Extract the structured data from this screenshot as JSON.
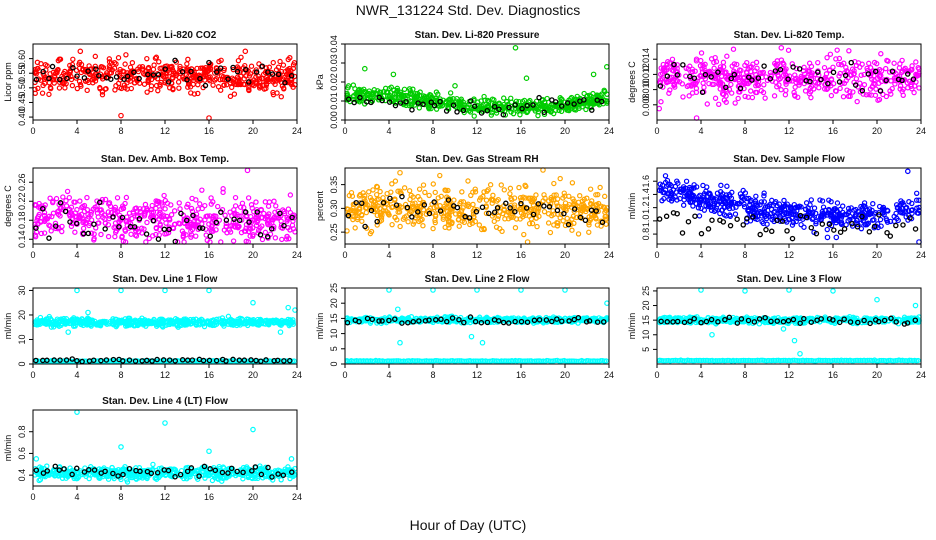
{
  "figure": {
    "title": "NWR_131224  Std. Dev. Diagnostics",
    "xlabel": "Hour of Day (UTC)"
  },
  "colors": {
    "red": "#ff0000",
    "green": "#00cc00",
    "magenta": "#ff00ff",
    "orange": "#ffa500",
    "blue": "#0000ff",
    "cyan": "#00ffff",
    "black": "#000000"
  },
  "chart_data": [
    {
      "type": "scatter",
      "title": "Stan. Dev. Li-820 CO2",
      "ylabel": "Licor ppm",
      "xlim": [
        0,
        24
      ],
      "ylim": [
        0.39,
        0.65
      ],
      "xticks": [
        0,
        4,
        8,
        12,
        16,
        20,
        24
      ],
      "yticks": [
        "0.40",
        "0.45",
        "0.50",
        "0.55",
        "0.60"
      ],
      "ytick_values": [
        0.4,
        0.45,
        0.5,
        0.55,
        0.6
      ],
      "color": "red",
      "center": [
        0.54,
        0.54,
        0.54,
        0.54,
        0.54,
        0.54,
        0.54
      ],
      "spread": 0.038,
      "outliers": [
        [
          4.3,
          0.625
        ],
        [
          8.0,
          0.405
        ],
        [
          16.0,
          0.39
        ],
        [
          19.3,
          0.625
        ]
      ],
      "black_center": 0.54,
      "black_spread": 0.03
    },
    {
      "type": "scatter",
      "title": "Stan. Dev. Li-820 Pressure",
      "ylabel": "kPa",
      "xlim": [
        0,
        24
      ],
      "ylim": [
        0,
        0.04
      ],
      "xticks": [
        0,
        4,
        8,
        12,
        16,
        20,
        24
      ],
      "yticks": [
        "0.00",
        "0.01",
        "0.02",
        "0.03",
        "0.04"
      ],
      "ytick_values": [
        0,
        0.01,
        0.02,
        0.03,
        0.04
      ],
      "color": "green",
      "center": [
        0.013,
        0.013,
        0.01,
        0.007,
        0.007,
        0.008,
        0.012
      ],
      "spread": 0.003,
      "outliers": [
        [
          15.5,
          0.038
        ],
        [
          16.5,
          0.022
        ],
        [
          4.4,
          0.024
        ],
        [
          23.8,
          0.028
        ],
        [
          22.6,
          0.024
        ],
        [
          1.8,
          0.027
        ],
        [
          10.0,
          0.018
        ]
      ],
      "black_center": 0.01,
      "black_spread": 0.003
    },
    {
      "type": "scatter",
      "title": "Stan. Dev. Li-820 Temp.",
      "ylabel": "degrees C",
      "xlim": [
        0,
        24
      ],
      "ylim": [
        0.006,
        0.016
      ],
      "xticks": [
        0,
        4,
        8,
        12,
        16,
        20,
        24
      ],
      "yticks": [
        "0.008",
        "0.010",
        "0.012",
        "0.014"
      ],
      "ytick_values": [
        0.008,
        0.01,
        0.012,
        0.014
      ],
      "color": "magenta",
      "center": [
        0.0115,
        0.0115,
        0.0115,
        0.0115,
        0.0115,
        0.0115,
        0.0115
      ],
      "spread": 0.0018,
      "outliers": [
        [
          3.6,
          0.0062
        ],
        [
          11.3,
          0.0155
        ],
        [
          0.2,
          0.0075
        ]
      ],
      "black_center": 0.0118,
      "black_spread": 0.0012
    },
    {
      "type": "scatter",
      "title": "Stan. Dev. Amb. Box Temp.",
      "ylabel": "degrees C",
      "xlim": [
        0,
        24
      ],
      "ylim": [
        0.13,
        0.29
      ],
      "xticks": [
        0,
        4,
        8,
        12,
        16,
        20,
        24
      ],
      "yticks": [
        "0.14",
        "0.18",
        "0.22",
        "0.26"
      ],
      "ytick_values": [
        0.14,
        0.18,
        0.22,
        0.26
      ],
      "color": "magenta",
      "center": [
        0.19,
        0.19,
        0.185,
        0.18,
        0.18,
        0.18,
        0.18
      ],
      "spread": 0.032,
      "outliers": [
        [
          19.5,
          0.285
        ]
      ],
      "black_center": 0.18,
      "black_spread": 0.025
    },
    {
      "type": "scatter",
      "title": "Stan. Dev. Gas Stream RH",
      "ylabel": "percent",
      "xlim": [
        0,
        24
      ],
      "ylim": [
        0.225,
        0.385
      ],
      "xticks": [
        0,
        4,
        8,
        12,
        16,
        20,
        24
      ],
      "yticks": [
        "0.25",
        "0.30",
        "0.35"
      ],
      "ytick_values": [
        0.25,
        0.3,
        0.35
      ],
      "color": "orange",
      "center": [
        0.3,
        0.3,
        0.3,
        0.3,
        0.3,
        0.3,
        0.3
      ],
      "spread": 0.032,
      "outliers": [
        [
          18.0,
          0.385
        ],
        [
          16.6,
          0.228
        ],
        [
          5.0,
          0.375
        ]
      ],
      "black_center": 0.295,
      "black_spread": 0.02
    },
    {
      "type": "scatter",
      "title": "Stan. Dev. Sample Flow",
      "ylabel": "ml/min",
      "xlim": [
        0,
        24
      ],
      "ylim": [
        0.65,
        1.8
      ],
      "xticks": [
        0,
        4,
        8,
        12,
        16,
        20,
        24
      ],
      "yticks": [
        "0.8",
        "1.0",
        "1.2",
        "1.4",
        "1.6"
      ],
      "ytick_values": [
        0.8,
        1.0,
        1.2,
        1.4,
        1.6
      ],
      "color": "blue",
      "center": [
        1.5,
        1.35,
        1.22,
        1.12,
        1.08,
        1.08,
        1.2
      ],
      "spread": 0.14,
      "outliers": [
        [
          15.5,
          0.75
        ],
        [
          23.9,
          0.68
        ],
        [
          22.8,
          1.75
        ],
        [
          16.3,
          0.75
        ]
      ],
      "black_center": 1.1,
      "black_spread": 0.15
    },
    {
      "type": "scatter",
      "title": "Stan. Dev. Line 1 Flow",
      "ylabel": "ml/min",
      "xlim": [
        0,
        24
      ],
      "ylim": [
        0,
        31
      ],
      "xticks": [
        0,
        4,
        8,
        12,
        16,
        20,
        24
      ],
      "yticks": [
        "0",
        "10",
        "20",
        "30"
      ],
      "ytick_values": [
        0,
        10,
        20,
        30
      ],
      "color": "cyan",
      "center": [
        17,
        17,
        17,
        17,
        17,
        17,
        17
      ],
      "spread": 1.1,
      "outliers": [
        [
          4,
          30
        ],
        [
          8,
          30
        ],
        [
          12,
          30
        ],
        [
          16,
          30
        ],
        [
          20,
          25
        ],
        [
          23.2,
          23
        ],
        [
          3.2,
          13
        ],
        [
          22.5,
          13
        ],
        [
          5,
          21
        ],
        [
          24,
          22
        ]
      ],
      "black_center": 1.5,
      "black_spread": 0.4,
      "black_separate": true,
      "extra_bands": [
        {
          "value": 1.2,
          "color": "cyan"
        }
      ]
    },
    {
      "type": "scatter",
      "title": "Stan. Dev. Line 2 Flow",
      "ylabel": "ml/min",
      "xlim": [
        0,
        24
      ],
      "ylim": [
        0,
        25
      ],
      "xticks": [
        0,
        4,
        8,
        12,
        16,
        20,
        24
      ],
      "yticks": [
        "0",
        "5",
        "10",
        "15",
        "20",
        "25"
      ],
      "ytick_values": [
        0,
        5,
        10,
        15,
        20,
        25
      ],
      "color": "cyan",
      "center": [
        14.5,
        14.5,
        14.5,
        14.5,
        14.5,
        14.5,
        14.5
      ],
      "spread": 0.6,
      "outliers": [
        [
          4,
          25
        ],
        [
          8,
          25
        ],
        [
          12,
          25
        ],
        [
          16,
          25
        ],
        [
          20,
          25
        ],
        [
          24,
          20
        ],
        [
          5,
          7
        ],
        [
          12.5,
          7
        ],
        [
          11.5,
          9
        ],
        [
          4.8,
          18
        ]
      ],
      "black_center": 14.3,
      "black_spread": 0.7,
      "extra_bands": [
        {
          "value": 1.0,
          "color": "cyan"
        }
      ]
    },
    {
      "type": "scatter",
      "title": "Stan. Dev. Line 3 Flow",
      "ylabel": "ml/min",
      "xlim": [
        0,
        24
      ],
      "ylim": [
        0,
        26
      ],
      "xticks": [
        0,
        4,
        8,
        12,
        16,
        20,
        24
      ],
      "yticks": [
        "5",
        "10",
        "15",
        "20",
        "25"
      ],
      "ytick_values": [
        5,
        10,
        15,
        20,
        25
      ],
      "color": "cyan",
      "center": [
        15,
        15,
        15,
        15,
        15,
        15,
        15
      ],
      "spread": 0.7,
      "outliers": [
        [
          4,
          26
        ],
        [
          8,
          25
        ],
        [
          12,
          26
        ],
        [
          16,
          25
        ],
        [
          20,
          22
        ],
        [
          23.5,
          20
        ],
        [
          12.5,
          8
        ],
        [
          5,
          10
        ],
        [
          13,
          3.5
        ],
        [
          11.5,
          12
        ]
      ],
      "black_center": 14.8,
      "black_spread": 0.7,
      "extra_bands": [
        {
          "value": 1.2,
          "color": "cyan"
        }
      ]
    },
    {
      "type": "scatter",
      "title": "Stan. Dev. Line 4 (LT) Flow",
      "ylabel": "ml/min",
      "xlim": [
        0,
        24
      ],
      "ylim": [
        0.3,
        1.0
      ],
      "xticks": [
        0,
        4,
        8,
        12,
        16,
        20,
        24
      ],
      "yticks": [
        "0.4",
        "0.6",
        "0.8"
      ],
      "ytick_values": [
        0.4,
        0.6,
        0.8
      ],
      "color": "cyan",
      "center": [
        0.42,
        0.42,
        0.42,
        0.42,
        0.42,
        0.42,
        0.42
      ],
      "spread": 0.04,
      "outliers": [
        [
          4,
          0.98
        ],
        [
          12,
          0.88
        ],
        [
          20,
          0.82
        ],
        [
          8,
          0.66
        ],
        [
          16,
          0.62
        ],
        [
          23.5,
          0.55
        ],
        [
          0.3,
          0.55
        ]
      ],
      "black_center": 0.43,
      "black_spread": 0.04
    }
  ]
}
